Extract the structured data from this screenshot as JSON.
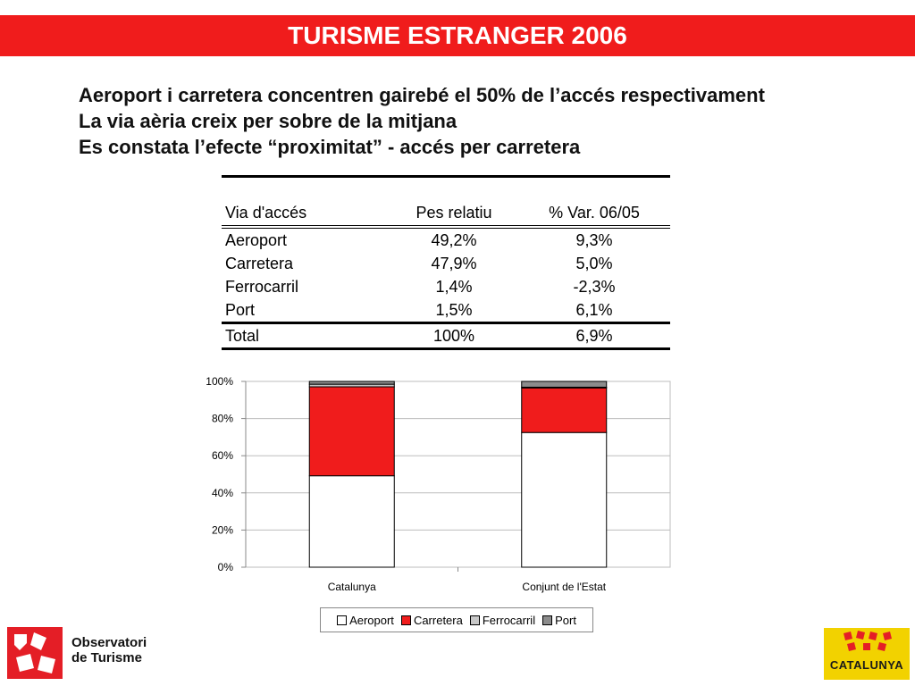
{
  "header": {
    "title": "TURISME ESTRANGER 2006"
  },
  "bullets": [
    "Aeroport i carretera concentren gairebé el 50% de l’accés respectivament",
    "La via aèria creix per sobre de la mitjana",
    "Es constata l’efecte “proximitat” - accés per carretera"
  ],
  "table": {
    "headers": [
      "Via d'accés",
      "Pes relatiu",
      "% Var. 06/05"
    ],
    "rows": [
      [
        "Aeroport",
        "49,2%",
        "9,3%"
      ],
      [
        "Carretera",
        "47,9%",
        "5,0%"
      ],
      [
        "Ferrocarril",
        "1,4%",
        "-2,3%"
      ],
      [
        "Port",
        "1,5%",
        "6,1%"
      ]
    ],
    "total": [
      "Total",
      "100%",
      "6,9%"
    ]
  },
  "chart_data": {
    "type": "bar",
    "stacked": true,
    "categories": [
      "Catalunya",
      "Conjunt de l'Estat"
    ],
    "series": [
      {
        "name": "Aeroport",
        "values": [
          49.2,
          72.5
        ],
        "color": "#ffffff"
      },
      {
        "name": "Carretera",
        "values": [
          47.9,
          24.0
        ],
        "color": "#f01c1c"
      },
      {
        "name": "Ferrocarril",
        "values": [
          1.4,
          0.4
        ],
        "color": "#c8c8c8"
      },
      {
        "name": "Port",
        "values": [
          1.5,
          3.1
        ],
        "color": "#8c8c8c"
      }
    ],
    "ylim": [
      0,
      100
    ],
    "yticks": [
      "0%",
      "20%",
      "40%",
      "60%",
      "80%",
      "100%"
    ],
    "grid": true,
    "legend": "bottom"
  },
  "logos": {
    "observatori_line1": "Observatori",
    "observatori_line2": "de Turisme",
    "catalunya": "CATALUNYA"
  },
  "colors": {
    "accent": "#f01c1c",
    "logo_yellow": "#f2d200"
  }
}
